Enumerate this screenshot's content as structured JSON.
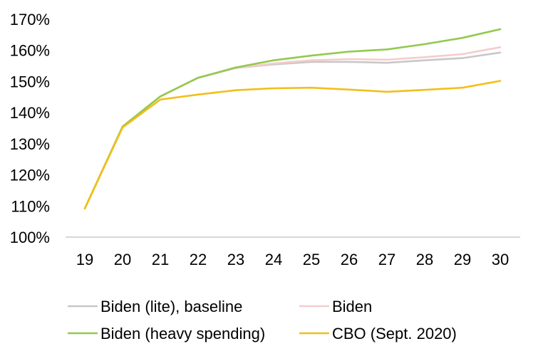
{
  "chart_data": {
    "type": "line",
    "title": "",
    "xlabel": "",
    "ylabel": "",
    "x": [
      "19",
      "20",
      "21",
      "22",
      "23",
      "24",
      "25",
      "26",
      "27",
      "28",
      "29",
      "30"
    ],
    "ylim": [
      100,
      170
    ],
    "yticks": [
      "100%",
      "110%",
      "120%",
      "130%",
      "140%",
      "150%",
      "160%",
      "170%"
    ],
    "ytick_values": [
      100,
      110,
      120,
      130,
      140,
      150,
      160,
      170
    ],
    "grid": false,
    "legend_position": "bottom",
    "series": [
      {
        "name": "Biden (lite), baseline",
        "color": "#c8c8c8",
        "values": [
          109.2,
          135.5,
          145.2,
          151.2,
          154.3,
          155.5,
          156.3,
          156.3,
          156.0,
          156.8,
          157.5,
          159.3
        ]
      },
      {
        "name": "Biden",
        "color": "#f5cccc",
        "values": [
          109.2,
          135.5,
          145.2,
          151.2,
          154.3,
          155.8,
          156.8,
          157.2,
          157.0,
          157.8,
          158.8,
          161.0
        ]
      },
      {
        "name": "Biden (heavy spending)",
        "color": "#92c94e",
        "values": [
          109.2,
          135.5,
          145.2,
          151.2,
          154.5,
          156.8,
          158.3,
          159.6,
          160.3,
          162.0,
          164.0,
          166.8
        ]
      },
      {
        "name": "CBO (Sept. 2020)",
        "color": "#f2bf1a",
        "values": [
          109.2,
          135.2,
          144.2,
          145.8,
          147.2,
          147.8,
          148.0,
          147.4,
          146.7,
          147.3,
          148.0,
          150.2
        ]
      }
    ]
  }
}
